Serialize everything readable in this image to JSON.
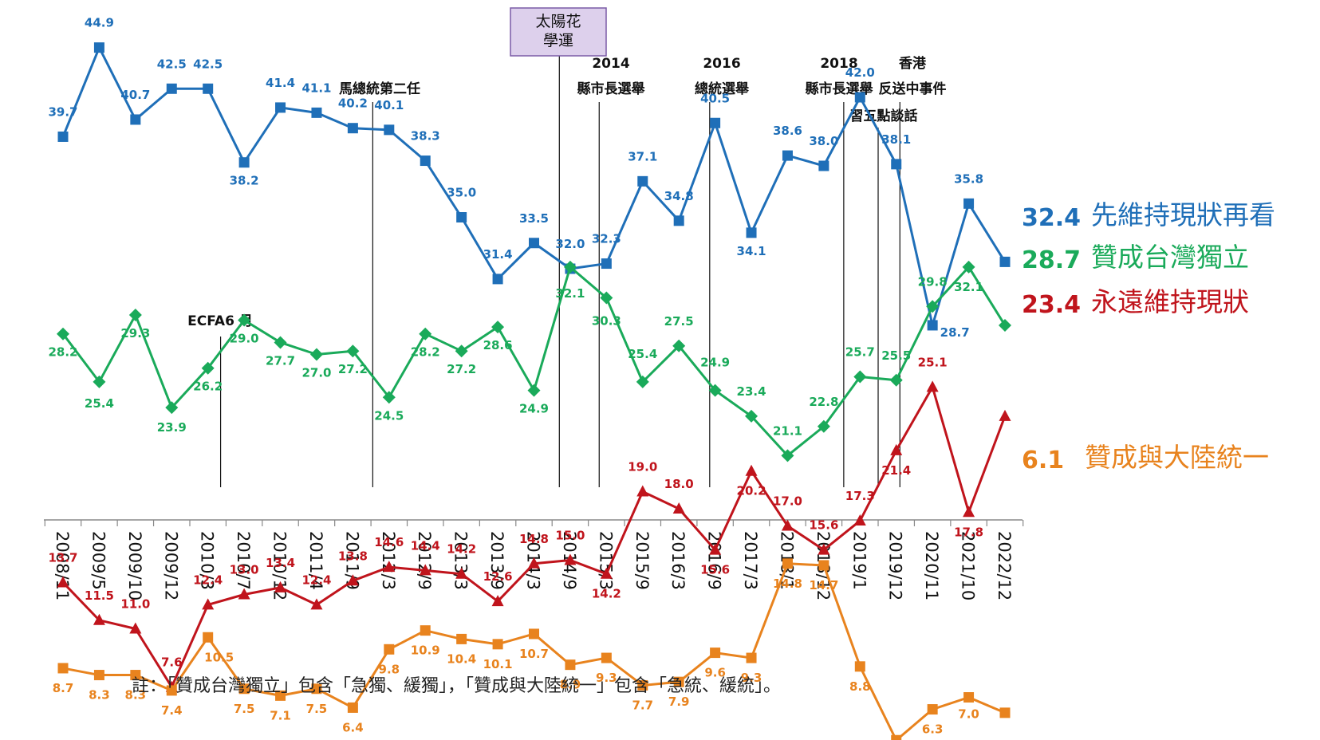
{
  "chart_data": {
    "type": "line",
    "categories": [
      "2008/11",
      "2009/5",
      "2009/10",
      "2009/12",
      "2010/3",
      "2010/7",
      "2010/12",
      "2011/4",
      "2011/9",
      "2012/3",
      "2012/9",
      "2013/3",
      "2013/9",
      "2014/3",
      "2014/9",
      "2015/3",
      "2015/9",
      "2016/3",
      "2016/9",
      "2017/3",
      "2018/1",
      "2018/12",
      "2019/1",
      "2019/12",
      "2020/11",
      "2021/10",
      "2022/12"
    ],
    "series": [
      {
        "name": "先維持現狀再看",
        "color": "#1f6fb8",
        "marker": "square",
        "values": [
          39.7,
          44.9,
          40.7,
          42.5,
          42.5,
          38.2,
          41.4,
          41.1,
          40.2,
          40.1,
          38.3,
          35.0,
          31.4,
          33.5,
          32.0,
          32.3,
          37.1,
          34.8,
          40.5,
          34.1,
          38.6,
          38.0,
          42.0,
          38.1,
          28.7,
          35.8,
          32.4
        ],
        "end_label": "32.4"
      },
      {
        "name": "贊成台灣獨立",
        "color": "#1aaa5a",
        "marker": "diamond",
        "values": [
          28.2,
          25.4,
          29.3,
          23.9,
          26.2,
          29.0,
          27.7,
          27.0,
          27.2,
          24.5,
          28.2,
          27.2,
          28.6,
          24.9,
          32.1,
          30.3,
          25.4,
          27.5,
          24.9,
          23.4,
          21.1,
          22.8,
          25.7,
          25.5,
          29.8,
          32.1,
          28.7
        ],
        "end_label": "28.7"
      },
      {
        "name": "永遠維持現狀",
        "color": "#c0141c",
        "marker": "triangle",
        "values": [
          13.7,
          11.5,
          11.0,
          7.6,
          12.4,
          13.0,
          13.4,
          12.4,
          13.8,
          14.6,
          14.4,
          14.2,
          12.6,
          14.8,
          15.0,
          14.2,
          19.0,
          18.0,
          15.6,
          20.2,
          17.0,
          15.6,
          17.3,
          21.4,
          25.1,
          17.8,
          23.4
        ],
        "end_label": "23.4"
      },
      {
        "name": "贊成與大陸統一",
        "color": "#e8831e",
        "marker": "square",
        "values": [
          8.7,
          8.3,
          8.3,
          7.4,
          10.5,
          7.5,
          7.1,
          7.5,
          6.4,
          9.8,
          10.9,
          10.4,
          10.1,
          10.7,
          8.9,
          9.3,
          7.7,
          7.9,
          9.6,
          9.3,
          14.8,
          14.7,
          8.8,
          4.5,
          6.3,
          7.0,
          6.1
        ],
        "end_label": "6.1"
      }
    ],
    "events": [
      {
        "lines": [
          "ECFA6 月"
        ]
      },
      {
        "lines": [
          "馬總統第二任"
        ]
      },
      {
        "lines": [
          "太陽花",
          "學運"
        ],
        "boxed": true
      },
      {
        "lines": [
          "2014",
          "縣市長選舉"
        ]
      },
      {
        "lines": [
          "2016",
          "總統選舉"
        ]
      },
      {
        "lines": [
          "2018",
          "縣市長選舉"
        ]
      },
      {
        "lines": [
          "習五點談話"
        ]
      },
      {
        "lines": [
          "香港",
          "反送中事件"
        ]
      }
    ],
    "title": "",
    "xlabel": "",
    "ylabel": "",
    "ylim": [
      0,
      50
    ]
  },
  "note": "註：「贊成台灣獨立」包含「急獨、緩獨」，「贊成與大陸統一」包含「急統、緩統」。"
}
